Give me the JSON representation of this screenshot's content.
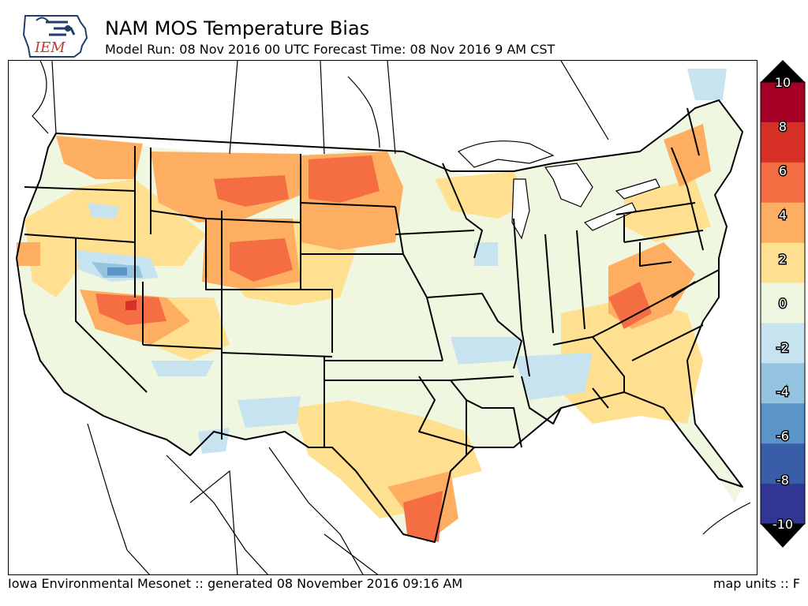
{
  "header": {
    "logo_text": "IEM",
    "title": "NAM MOS Temperature Bias",
    "subtitle": "Model Run: 08 Nov 2016 00 UTC Forecast Time: 08 Nov 2016 9 AM CST"
  },
  "legend": {
    "units": "F",
    "ticks": [
      "10",
      "8",
      "6",
      "4",
      "2",
      "0",
      "-2",
      "-4",
      "-6",
      "-8",
      "-10"
    ],
    "colors": [
      "#a50026",
      "#d73027",
      "#f46d43",
      "#fdae61",
      "#fee090",
      "#f0f7e0",
      "#c6e3ef",
      "#94c4e0",
      "#5b94c6",
      "#3a5da8",
      "#313695"
    ]
  },
  "footer": {
    "credit": "Iowa Environmental Mesonet :: generated 08 November 2016 09:16 AM",
    "units_label": "map units :: F"
  }
}
